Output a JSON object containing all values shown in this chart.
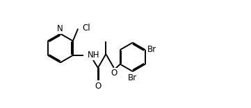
{
  "background_color": "#ffffff",
  "line_color": "#000000",
  "line_width": 1.4,
  "font_size": 8.5,
  "fig_width": 3.61,
  "fig_height": 1.56,
  "dpi": 100,
  "xlim": [
    0.0,
    3.61
  ],
  "ylim": [
    0.0,
    1.56
  ]
}
